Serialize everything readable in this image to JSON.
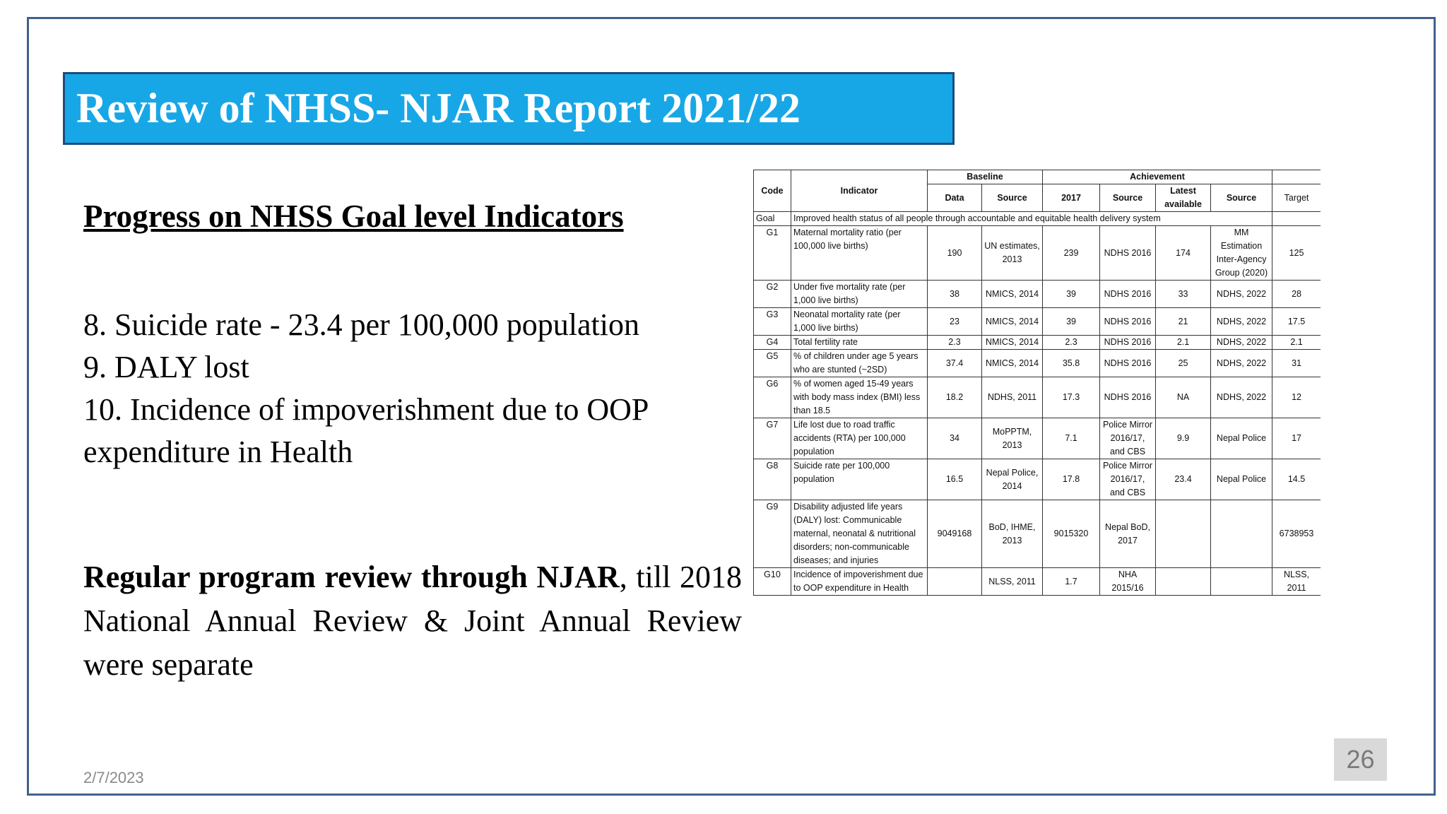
{
  "slide": {
    "title": "Review of NHSS- NJAR Report 2021/22",
    "subtitle": "Progress on NHSS Goal level Indicators",
    "points": [
      "8. Suicide rate - 23.4 per 100,000 population",
      "9. DALY lost",
      "10. Incidence of impoverishment due to OOP expenditure in Health"
    ],
    "review_bold": "Regular program review through NJAR",
    "review_rest": ", till 2018 National Annual Review & Joint Annual Review were separate",
    "date": "2/7/2023",
    "page_number": "26",
    "colors": {
      "title_bg": "#18a7e6",
      "frame": "#41618c"
    }
  },
  "table": {
    "headers": {
      "code": "Code",
      "indicator": "Indicator",
      "baseline": "Baseline",
      "achievement": "Achievement",
      "data": "Data",
      "source": "Source",
      "year2017": "2017",
      "source2": "Source",
      "latest": "Latest available",
      "source3": "Source",
      "target": "Target"
    },
    "goal": {
      "code": "Goal",
      "text": "Improved health status of all people through accountable and equitable health delivery system"
    },
    "rows": [
      {
        "code": "G1",
        "indicator": "Maternal mortality ratio (per 100,000 live births)",
        "data": "190",
        "source": "UN estimates, 2013",
        "y2017": "239",
        "source2": "NDHS 2016",
        "latest": "174",
        "source3": "MM Estimation Inter-Agency Group (2020)",
        "target": "125"
      },
      {
        "code": "G2",
        "indicator": "Under five mortality rate (per 1,000 live births)",
        "data": "38",
        "source": "NMICS, 2014",
        "y2017": "39",
        "source2": "NDHS 2016",
        "latest": "33",
        "source3": "NDHS, 2022",
        "target": "28"
      },
      {
        "code": "G3",
        "indicator": "Neonatal mortality rate (per 1,000 live births)",
        "data": "23",
        "source": "NMICS, 2014",
        "y2017": "39",
        "source2": "NDHS 2016",
        "latest": "21",
        "source3": "NDHS, 2022",
        "target": "17.5"
      },
      {
        "code": "G4",
        "indicator": "Total fertility rate",
        "data": "2.3",
        "source": "NMICS, 2014",
        "y2017": "2.3",
        "source2": "NDHS 2016",
        "latest": "2.1",
        "source3": "NDHS, 2022",
        "target": "2.1"
      },
      {
        "code": "G5",
        "indicator": "% of children under age 5 years who are stunted (~2SD)",
        "data": "37.4",
        "source": "NMICS, 2014",
        "y2017": "35.8",
        "source2": "NDHS 2016",
        "latest": "25",
        "source3": "NDHS, 2022",
        "target": "31"
      },
      {
        "code": "G6",
        "indicator": "% of women aged 15-49 years with body mass index (BMI) less than 18.5",
        "data": "18.2",
        "source": "NDHS, 2011",
        "y2017": "17.3",
        "source2": "NDHS 2016",
        "latest": "NA",
        "source3": "NDHS, 2022",
        "target": "12"
      },
      {
        "code": "G7",
        "indicator": "Life lost due to road traffic accidents (RTA) per 100,000 population",
        "data": "34",
        "source": "MoPPTM, 2013",
        "y2017": "7.1",
        "source2": "Police Mirror 2016/17, and CBS",
        "latest": "9.9",
        "source3": "Nepal Police",
        "target": "17"
      },
      {
        "code": "G8",
        "indicator": "Suicide rate per 100,000 population",
        "data": "16.5",
        "source": "Nepal Police, 2014",
        "y2017": "17.8",
        "source2": "Police Mirror 2016/17, and CBS",
        "latest": "23.4",
        "source3": "Nepal Police",
        "target": "14.5"
      },
      {
        "code": "G9",
        "indicator": "Disability adjusted life years (DALY) lost: Communicable maternal, neonatal & nutritional disorders; non-communicable diseases; and injuries",
        "data": "9049168",
        "source": "BoD, IHME, 2013",
        "y2017": "9015320",
        "source2": "Nepal BoD, 2017",
        "latest": "",
        "source3": "",
        "target": "6738953"
      },
      {
        "code": "G10",
        "indicator": "Incidence of impoverishment due to OOP expenditure in Health",
        "data": "",
        "source": "NLSS, 2011",
        "y2017": "1.7",
        "source2": "NHA 2015/16",
        "latest": "",
        "source3": "",
        "target": "NLSS, 2011"
      }
    ]
  }
}
